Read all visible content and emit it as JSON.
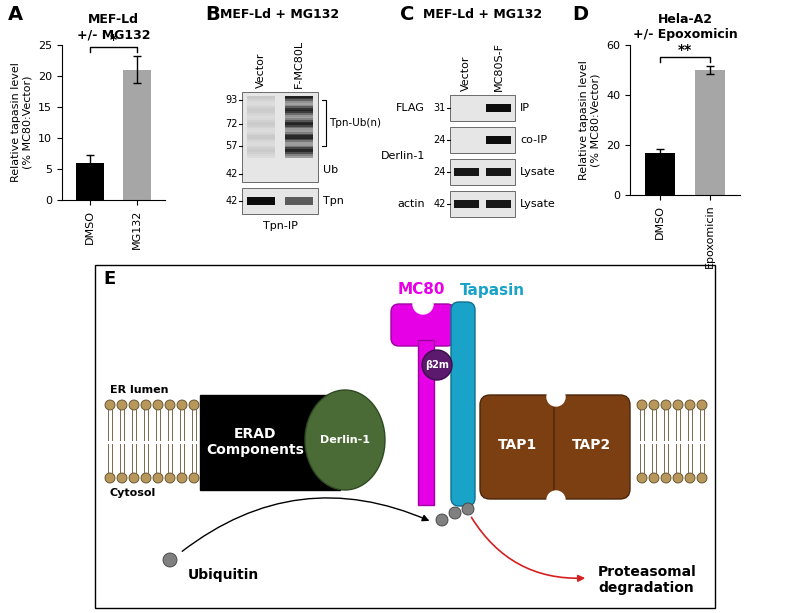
{
  "chart_data": [
    {
      "type": "bar",
      "panel_label": "A",
      "title": "MEF-Ld\n+/- MG132",
      "y_label": "Relative tapasin level\n(% MC80:Vector)",
      "categories": [
        "DMSO",
        "MG132"
      ],
      "values": [
        6,
        21
      ],
      "errors": [
        1.2,
        2.2
      ],
      "colors": [
        "#000000",
        "#a6a6a6"
      ],
      "ylim": [
        0,
        25
      ],
      "yticks": [
        0,
        5,
        10,
        15,
        20,
        25
      ],
      "annotations": [
        "*"
      ]
    },
    {
      "type": "bar",
      "panel_label": "D",
      "title": "Hela-A2\n+/- Epoxomicin",
      "y_label": "Relative tapasin level\n(% MC80:Vector)",
      "categories": [
        "DMSO",
        "Epoxomicin"
      ],
      "values": [
        17,
        50
      ],
      "errors": [
        1.5,
        1.5
      ],
      "colors": [
        "#000000",
        "#a6a6a6"
      ],
      "ylim": [
        0,
        60
      ],
      "yticks": [
        0,
        20,
        40,
        60
      ],
      "annotations": [
        "**"
      ]
    }
  ],
  "blots": [
    {
      "panel_label": "B",
      "title": "MEF-Ld + MG132",
      "lanes": [
        "Vector",
        "F-MC80L"
      ],
      "rows": [
        {
          "name": null,
          "tag": "Ub",
          "type": "smear",
          "markers": [
            93,
            72,
            57,
            42
          ],
          "bands": [
            0.12,
            0.85
          ]
        },
        {
          "name": null,
          "tag": "Tpn",
          "type": "band",
          "markers": [
            42
          ],
          "bands": [
            0.95,
            0.6
          ]
        }
      ],
      "bracket_label": "Tpn-Ub(n)",
      "footer": "Tpn-IP"
    },
    {
      "panel_label": "C",
      "title": "MEF-Ld + MG132",
      "lanes": [
        "Vector",
        "MC80S-F"
      ],
      "rows": [
        {
          "name": "FLAG",
          "tag": "IP",
          "type": "band",
          "markers": [
            31
          ],
          "bands": [
            0.0,
            0.95
          ]
        },
        {
          "name": "Derlin-1",
          "tag": "co-IP",
          "type": "band",
          "markers": [
            24
          ],
          "bands": [
            0.0,
            0.95
          ]
        },
        {
          "name": null,
          "tag": "Lysate",
          "type": "band",
          "markers": [
            24
          ],
          "bands": [
            0.9,
            0.9
          ]
        },
        {
          "name": "actin",
          "tag": "Lysate",
          "type": "band",
          "markers": [
            42
          ],
          "bands": [
            0.9,
            0.9
          ]
        }
      ],
      "bracket_label": null,
      "footer": null
    }
  ],
  "diagram": {
    "panel_label": "E",
    "lumen": "ER lumen",
    "cytosol": "Cytosol",
    "erad": "ERAD\nComponents",
    "derlin": "Derlin-1",
    "mc80": "MC80",
    "b2m": "β2m",
    "tapasin": "Tapasin",
    "tap1": "TAP1",
    "tap2": "TAP2",
    "ubiquitin": "Ubiquitin",
    "outcome": "Proteasomal\ndegradation"
  }
}
